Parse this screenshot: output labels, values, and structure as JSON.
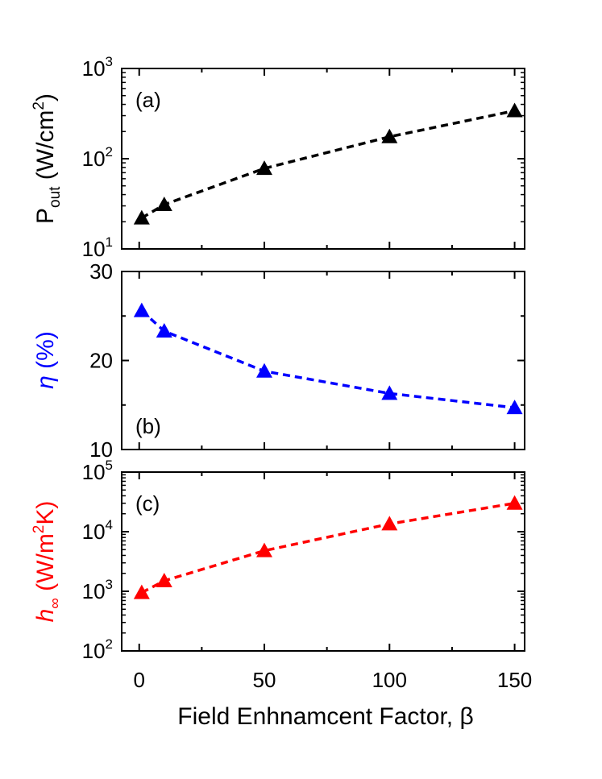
{
  "xaxis": {
    "label": "Field Enhnamcent Factor, β",
    "ticks": [
      "0",
      "50",
      "100",
      "150"
    ],
    "tick_values": [
      0,
      50,
      100,
      150
    ],
    "xlim": [
      -7,
      154
    ]
  },
  "chart_data": [
    {
      "type": "line",
      "panel_label": "(a)",
      "ylabel": {
        "main": "P",
        "sub": "out",
        "unit_prefix": " (W/cm",
        "unit_sup": "2",
        "unit_suffix": ")"
      },
      "yscale": "log",
      "ylim": [
        10,
        1000
      ],
      "yticks": [
        {
          "base": "10",
          "exp": "1",
          "value": 10
        },
        {
          "base": "10",
          "exp": "2",
          "value": 100
        },
        {
          "base": "10",
          "exp": "3",
          "value": 1000
        }
      ],
      "color": "#000000",
      "marker": "triangle",
      "linestyle": "dashed",
      "x": [
        1,
        10,
        50,
        100,
        150
      ],
      "y": [
        22,
        31,
        78,
        175,
        340
      ],
      "grid": false
    },
    {
      "type": "line",
      "panel_label": "(b)",
      "ylabel": {
        "main": "η",
        "suffix": " (%)"
      },
      "yscale": "linear",
      "ylim": [
        10,
        30
      ],
      "yticks": [
        {
          "base": "10",
          "value": 10
        },
        {
          "base": "20",
          "value": 20
        },
        {
          "base": "30",
          "value": 30
        }
      ],
      "color": "#0000ff",
      "marker": "triangle",
      "linestyle": "dashed",
      "x": [
        1,
        10,
        50,
        100,
        150
      ],
      "y": [
        25.6,
        23.3,
        18.8,
        16.3,
        14.7
      ],
      "grid": false
    },
    {
      "type": "line",
      "panel_label": "(c)",
      "ylabel": {
        "main": "h",
        "sub": "∞",
        "unit_prefix": " (W/m",
        "unit_sup": "2",
        "unit_suffix": "K)"
      },
      "yscale": "log",
      "ylim": [
        100,
        100000
      ],
      "yticks": [
        {
          "base": "10",
          "exp": "2",
          "value": 100
        },
        {
          "base": "10",
          "exp": "3",
          "value": 1000
        },
        {
          "base": "10",
          "exp": "4",
          "value": 10000
        },
        {
          "base": "10",
          "exp": "5",
          "value": 100000
        }
      ],
      "color": "#ff0000",
      "marker": "triangle",
      "linestyle": "dashed",
      "x": [
        1,
        10,
        50,
        100,
        150
      ],
      "y": [
        950,
        1500,
        4800,
        13500,
        30000
      ],
      "grid": false
    }
  ]
}
